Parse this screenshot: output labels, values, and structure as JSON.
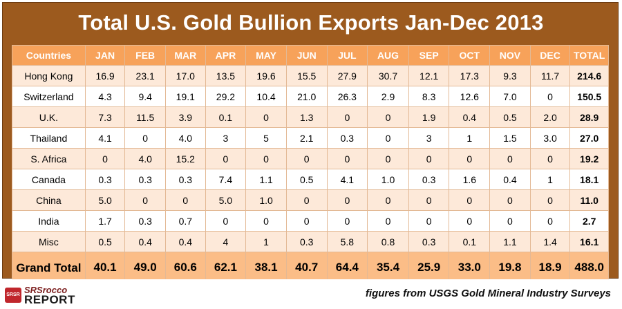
{
  "title": "Total U.S. Gold Bullion Exports Jan-Dec 2013",
  "source_note": "figures from USGS Gold Mineral Industry Surveys",
  "logo": {
    "top": "SRSrocco",
    "bottom": "REPORT",
    "badge": "SRSR"
  },
  "colors": {
    "frame": "#9c5a1e",
    "header": "#f7a25a",
    "row_shaded": "#fde9d9",
    "footer_row": "#fbbd87"
  },
  "chart_data": {
    "type": "table",
    "title": "Total U.S. Gold Bullion Exports Jan-Dec 2013",
    "columns": [
      "Countries",
      "JAN",
      "FEB",
      "MAR",
      "APR",
      "MAY",
      "JUN",
      "JUL",
      "AUG",
      "SEP",
      "OCT",
      "NOV",
      "DEC",
      "TOTAL"
    ],
    "rows": [
      [
        "Hong Kong",
        "16.9",
        "23.1",
        "17.0",
        "13.5",
        "19.6",
        "15.5",
        "27.9",
        "30.7",
        "12.1",
        "17.3",
        "9.3",
        "11.7",
        "214.6"
      ],
      [
        "Switzerland",
        "4.3",
        "9.4",
        "19.1",
        "29.2",
        "10.4",
        "21.0",
        "26.3",
        "2.9",
        "8.3",
        "12.6",
        "7.0",
        "0",
        "150.5"
      ],
      [
        "U.K.",
        "7.3",
        "11.5",
        "3.9",
        "0.1",
        "0",
        "1.3",
        "0",
        "0",
        "1.9",
        "0.4",
        "0.5",
        "2.0",
        "28.9"
      ],
      [
        "Thailand",
        "4.1",
        "0",
        "4.0",
        "3",
        "5",
        "2.1",
        "0.3",
        "0",
        "3",
        "1",
        "1.5",
        "3.0",
        "27.0"
      ],
      [
        "S. Africa",
        "0",
        "4.0",
        "15.2",
        "0",
        "0",
        "0",
        "0",
        "0",
        "0",
        "0",
        "0",
        "0",
        "19.2"
      ],
      [
        "Canada",
        "0.3",
        "0.3",
        "0.3",
        "7.4",
        "1.1",
        "0.5",
        "4.1",
        "1.0",
        "0.3",
        "1.6",
        "0.4",
        "1",
        "18.1"
      ],
      [
        "China",
        "5.0",
        "0",
        "0",
        "5.0",
        "1.0",
        "0",
        "0",
        "0",
        "0",
        "0",
        "0",
        "0",
        "11.0"
      ],
      [
        "India",
        "1.7",
        "0.3",
        "0.7",
        "0",
        "0",
        "0",
        "0",
        "0",
        "0",
        "0",
        "0",
        "0",
        "2.7"
      ],
      [
        "Misc",
        "0.5",
        "0.4",
        "0.4",
        "4",
        "1",
        "0.3",
        "5.8",
        "0.8",
        "0.3",
        "0.1",
        "1.1",
        "1.4",
        "16.1"
      ]
    ],
    "grand_total": {
      "label": "Grand Total",
      "values": [
        "40.1",
        "49.0",
        "60.6",
        "62.1",
        "38.1",
        "40.7",
        "64.4",
        "35.4",
        "25.9",
        "33.0",
        "19.8",
        "18.9",
        "488.0"
      ]
    }
  }
}
